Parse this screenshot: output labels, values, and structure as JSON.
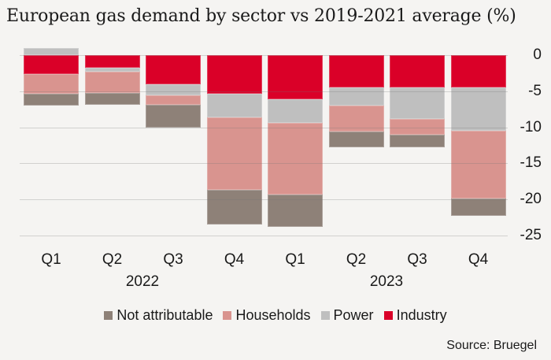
{
  "colors": {
    "background": "#f5f4f2",
    "text": "#1a1a1a",
    "gridline": "#d8d8d8",
    "industry_red": "#da0028",
    "households_pink": "#d9948f",
    "power_gray": "#bfbfbf",
    "not_attributable_brown": "#8e8178"
  },
  "chart_data": {
    "type": "bar",
    "stacked": true,
    "title": "European gas demand by sector vs 2019-2021 average (%)",
    "unit": "%",
    "categories": [
      "Q1",
      "Q2",
      "Q3",
      "Q4",
      "Q1",
      "Q2",
      "Q3",
      "Q4"
    ],
    "year_groups": [
      {
        "label": "2022",
        "from": 0,
        "to": 3
      },
      {
        "label": "2023",
        "from": 4,
        "to": 7
      }
    ],
    "series": [
      {
        "name": "Not attributable",
        "color": "#8e8178",
        "values": [
          -1.7,
          -1.7,
          -3.1,
          -4.8,
          -4.5,
          -2.2,
          -1.8,
          -2.4
        ]
      },
      {
        "name": "Households",
        "color": "#d9948f",
        "values": [
          -2.7,
          -2.9,
          -1.3,
          -10.1,
          -9.9,
          -3.6,
          -2.2,
          -9.4
        ]
      },
      {
        "name": "Power",
        "color": "#bfbfbf",
        "values": [
          1.0,
          -0.5,
          -1.6,
          -3.3,
          -3.3,
          -2.5,
          -4.3,
          -6.0
        ]
      },
      {
        "name": "Industry",
        "color": "#da0028",
        "values": [
          -2.6,
          -1.8,
          -4.0,
          -5.3,
          -6.1,
          -4.5,
          -4.5,
          -4.5
        ]
      }
    ],
    "stack_order_from_zero": [
      "Industry",
      "Power",
      "Households",
      "Not attributable"
    ],
    "y_ticks": [
      0,
      -5,
      -10,
      -15,
      -20,
      -25
    ],
    "ylim": [
      -25,
      2
    ],
    "axis_side": "right",
    "legend_position": "bottom",
    "gridlines": true
  },
  "source_note": "Source: Bruegel"
}
